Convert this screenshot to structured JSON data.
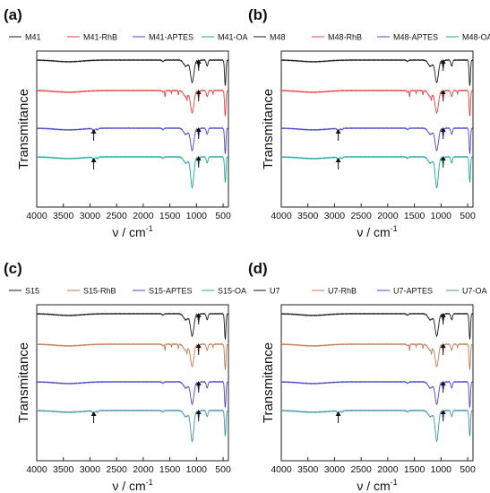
{
  "figure": {
    "colors": {
      "frame": "#222222",
      "arrow": "#111111"
    },
    "panels": [
      "a",
      "b",
      "c",
      "d"
    ]
  },
  "chart_data": [
    {
      "type": "line",
      "panel_label": "(a)",
      "xlabel": "ν / cm",
      "xlabel_superscript": "-1",
      "ylabel": "Transmitance",
      "xlim": [
        4000,
        400
      ],
      "x_reversed": true,
      "x_ticks": [
        4000,
        3500,
        3000,
        2500,
        2000,
        1500,
        1000,
        500
      ],
      "y_ticks": false,
      "legend_position": "top",
      "series": [
        {
          "name": "M41",
          "color": "#1a1a1a",
          "rhb": false,
          "arrow_ch": false
        },
        {
          "name": "M41-RhB",
          "color": "#e8403f",
          "rhb": true,
          "arrow_ch": false
        },
        {
          "name": "M41-APTES",
          "color": "#4747c8",
          "rhb": false,
          "arrow_ch": true
        },
        {
          "name": "M41-OA",
          "color": "#1aa89c",
          "rhb": false,
          "arrow_ch": true
        }
      ]
    },
    {
      "type": "line",
      "panel_label": "(b)",
      "xlabel": "ν / cm",
      "xlabel_superscript": "-1",
      "ylabel": "Transmitance",
      "xlim": [
        4000,
        400
      ],
      "x_reversed": true,
      "x_ticks": [
        4000,
        3500,
        3000,
        2500,
        2000,
        1500,
        1000,
        500
      ],
      "y_ticks": false,
      "legend_position": "top",
      "series": [
        {
          "name": "M48",
          "color": "#1a1a1a",
          "rhb": false,
          "arrow_ch": false
        },
        {
          "name": "M48-RhB",
          "color": "#e8403f",
          "rhb": true,
          "arrow_ch": false
        },
        {
          "name": "M48-APTES",
          "color": "#4747c8",
          "rhb": false,
          "arrow_ch": true
        },
        {
          "name": "M48-OA",
          "color": "#1aa89c",
          "rhb": false,
          "arrow_ch": true
        }
      ]
    },
    {
      "type": "line",
      "panel_label": "(c)",
      "xlabel": "ν / cm",
      "xlabel_superscript": "-1",
      "ylabel": "Transmitance",
      "xlim": [
        4000,
        400
      ],
      "x_reversed": true,
      "x_ticks": [
        4000,
        3500,
        3000,
        2500,
        2000,
        1500,
        1000,
        500
      ],
      "y_ticks": false,
      "legend_position": "top",
      "series": [
        {
          "name": "S15",
          "color": "#1a1a1a",
          "rhb": false,
          "arrow_ch": false
        },
        {
          "name": "S15-RhB",
          "color": "#c07a55",
          "rhb": true,
          "arrow_ch": false
        },
        {
          "name": "S15-APTES",
          "color": "#4747c8",
          "rhb": false,
          "arrow_ch": false
        },
        {
          "name": "S15-OA",
          "color": "#3f93b0",
          "rhb": false,
          "arrow_ch": true
        }
      ]
    },
    {
      "type": "line",
      "panel_label": "(d)",
      "xlabel": "ν / cm",
      "xlabel_superscript": "-1",
      "ylabel": "Transmitance",
      "xlim": [
        4000,
        400
      ],
      "x_reversed": true,
      "x_ticks": [
        4000,
        3500,
        3000,
        2500,
        2000,
        1500,
        1000,
        500
      ],
      "y_ticks": false,
      "legend_position": "top",
      "series": [
        {
          "name": "U7",
          "color": "#1a1a1a",
          "rhb": false,
          "arrow_ch": false
        },
        {
          "name": "U7-RhB",
          "color": "#c07a55",
          "rhb": true,
          "arrow_ch": false
        },
        {
          "name": "U7-APTES",
          "color": "#4747c8",
          "rhb": false,
          "arrow_ch": false
        },
        {
          "name": "U7-OA",
          "color": "#3f93b0",
          "rhb": false,
          "arrow_ch": true
        }
      ]
    }
  ]
}
